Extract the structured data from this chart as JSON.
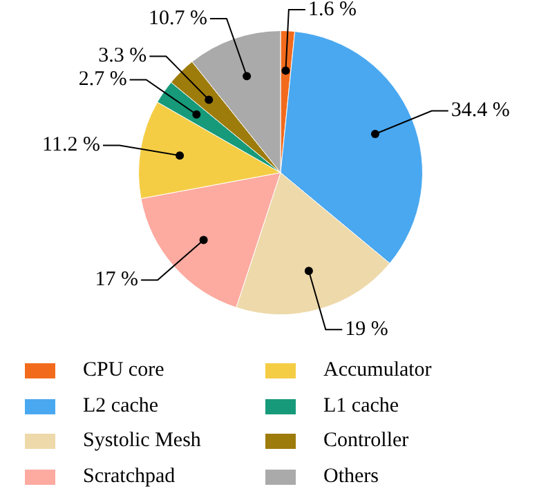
{
  "chart_data": {
    "type": "pie",
    "categories": [
      "CPU core",
      "L2 cache",
      "Systolic Mesh",
      "Scratchpad",
      "Accumulator",
      "L1 cache",
      "Controller",
      "Others"
    ],
    "values": [
      1.6,
      34.4,
      19,
      17,
      11.2,
      2.7,
      3.3,
      10.7
    ],
    "value_labels": [
      "1.6 %",
      "34.4 %",
      "19 %",
      "17 %",
      "11.2 %",
      "2.7 %",
      "3.3 %",
      "10.7 %"
    ],
    "colors": [
      "#f26b1d",
      "#4aa8f0",
      "#eed9aa",
      "#fdaaa0",
      "#f5cd45",
      "#179a7a",
      "#9e7c0c",
      "#aaaaaa"
    ],
    "legend": "bottom"
  }
}
